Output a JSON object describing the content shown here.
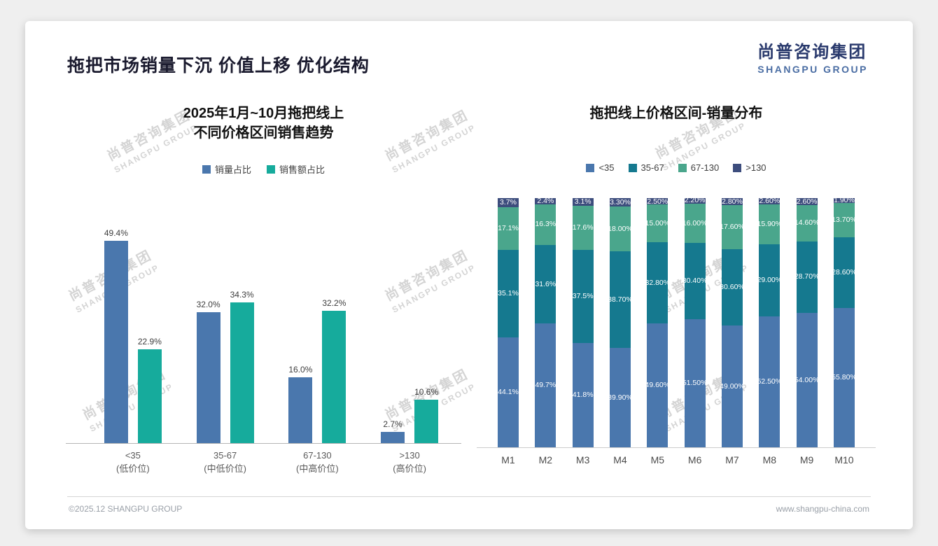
{
  "page": {
    "title": "拖把市场销量下沉 价值上移 优化结构",
    "logo": {
      "cn": "尚普咨询集团",
      "en": "SHANGPU GROUP"
    },
    "watermark": {
      "cn": "尚普咨询集团",
      "en": "SHANGPU GROUP"
    },
    "footer": {
      "left": "©2025.12 SHANGPU GROUP",
      "right": "www.shangpu-china.com"
    }
  },
  "colors": {
    "left_series": [
      "#4a77ad",
      "#16ab9c"
    ],
    "stack_series": [
      "#4a77ad",
      "#15798f",
      "#4aa68c",
      "#3d4d7d"
    ]
  },
  "chart_data": [
    {
      "type": "bar",
      "title_lines": [
        "2025年1月~10月拖把线上",
        "不同价格区间销售趋势"
      ],
      "categories": [
        {
          "label": "<35",
          "sub": "(低价位)"
        },
        {
          "label": "35-67",
          "sub": "(中低价位)"
        },
        {
          "label": "67-130",
          "sub": "(中高价位)"
        },
        {
          "label": ">130",
          "sub": "(高价位)"
        }
      ],
      "series": [
        {
          "name": "销量占比",
          "values": [
            49.4,
            32.0,
            16.0,
            2.7
          ],
          "labels": [
            "49.4%",
            "32.0%",
            "16.0%",
            "2.7%"
          ]
        },
        {
          "name": "销售额占比",
          "values": [
            22.9,
            34.3,
            32.2,
            10.6
          ],
          "labels": [
            "22.9%",
            "34.3%",
            "32.2%",
            "10.6%"
          ]
        }
      ],
      "xlabel": "",
      "ylabel": "",
      "ylim": [
        0,
        55
      ],
      "grid": false,
      "legend_position": "top"
    },
    {
      "type": "bar",
      "stacked": true,
      "title": "拖把线上价格区间-销量分布",
      "categories": [
        "M1",
        "M2",
        "M3",
        "M4",
        "M5",
        "M6",
        "M7",
        "M8",
        "M9",
        "M10"
      ],
      "series": [
        {
          "name": "<35",
          "values": [
            44.1,
            49.7,
            41.8,
            39.9,
            49.6,
            51.5,
            49.0,
            52.5,
            54.0,
            55.8
          ],
          "labels": [
            "44.1%",
            "49.7%",
            "41.8%",
            "39.90%",
            "49.60%",
            "51.50%",
            "49.00%",
            "52.50%",
            "54.00%",
            "55.80%"
          ]
        },
        {
          "name": "35-67",
          "values": [
            35.1,
            31.6,
            37.5,
            38.7,
            32.8,
            30.4,
            30.6,
            29.0,
            28.7,
            28.6
          ],
          "labels": [
            "35.1%",
            "31.6%",
            "37.5%",
            "38.70%",
            "32.80%",
            "30.40%",
            "30.60%",
            "29.00%",
            "28.70%",
            "28.60%"
          ]
        },
        {
          "name": "67-130",
          "values": [
            17.1,
            16.3,
            17.6,
            18.0,
            15.0,
            16.0,
            17.6,
            15.9,
            14.6,
            13.7
          ],
          "labels": [
            "17.1%",
            "16.3%",
            "17.6%",
            "18.00%",
            "15.00%",
            "16.00%",
            "17.60%",
            "15.90%",
            "14.60%",
            "13.70%"
          ]
        },
        {
          "name": ">130",
          "values": [
            3.7,
            2.4,
            3.1,
            3.3,
            2.5,
            2.2,
            2.8,
            2.6,
            2.6,
            1.9
          ],
          "labels": [
            "3.7%",
            "2.4%",
            "3.1%",
            "3.30%",
            "2.50%",
            "2.20%",
            "2.80%",
            "2.60%",
            "2.60%",
            "1.90%"
          ]
        }
      ],
      "xlabel": "",
      "ylabel": "",
      "ylim": [
        0,
        100
      ],
      "grid": false,
      "legend_position": "top"
    }
  ]
}
